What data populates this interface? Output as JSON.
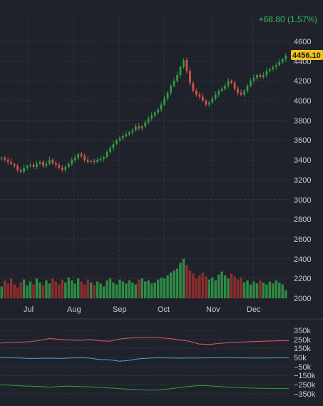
{
  "header": {
    "change_label": "+68.80 (1.57%)"
  },
  "colors": {
    "background": "#1f222a",
    "grid": "#33373f",
    "up": "#2ea043",
    "down": "#d9534f",
    "vol_up": "#2f8a45",
    "vol_down": "#8f2d2d",
    "price_tag": "#f0c419",
    "change": "#2ebd59",
    "ind_red": "#e05a5a",
    "ind_blue": "#4fa3e0",
    "ind_green": "#2ea043"
  },
  "price_axis": {
    "ticks": [
      "4600",
      "4400",
      "4200",
      "4000",
      "3800",
      "3600",
      "3400",
      "3200",
      "3000",
      "2800",
      "2600",
      "2400",
      "2200",
      "2000"
    ],
    "last_price": "4456.10"
  },
  "x_axis": {
    "months": [
      "Jul",
      "Aug",
      "Sep",
      "Oct",
      "Nov",
      "Dec"
    ]
  },
  "indicator_axis": {
    "ticks": [
      "350k",
      "250k",
      "150k",
      "50k",
      "−50k",
      "−150k",
      "−250k",
      "−350k"
    ]
  },
  "chart_data": [
    {
      "type": "candlestick",
      "title": "",
      "ylim": [
        2000,
        4600
      ],
      "months": [
        "Jul",
        "Aug",
        "Sep",
        "Oct",
        "Nov",
        "Dec"
      ],
      "close_series": [
        3420,
        3400,
        3380,
        3360,
        3340,
        3300,
        3280,
        3320,
        3340,
        3350,
        3330,
        3360,
        3380,
        3340,
        3360,
        3400,
        3370,
        3350,
        3320,
        3300,
        3330,
        3360,
        3400,
        3420,
        3460,
        3440,
        3400,
        3380,
        3390,
        3380,
        3400,
        3410,
        3430,
        3480,
        3520,
        3560,
        3600,
        3620,
        3640,
        3660,
        3680,
        3700,
        3740,
        3720,
        3740,
        3780,
        3820,
        3850,
        3880,
        3910,
        3960,
        4020,
        4080,
        4150,
        4200,
        4260,
        4340,
        4410,
        4300,
        4180,
        4100,
        4060,
        4040,
        4000,
        3960,
        3980,
        4020,
        4060,
        4100,
        4120,
        4150,
        4200,
        4180,
        4120,
        4080,
        4060,
        4100,
        4150,
        4200,
        4230,
        4260,
        4240,
        4260,
        4300,
        4320,
        4340,
        4360,
        4390,
        4420,
        4456
      ],
      "last_price": 4456.1,
      "change": "+68.80 (1.57%)"
    },
    {
      "type": "bar",
      "title": "volume",
      "values": [
        2120,
        2180,
        2150,
        2200,
        2140,
        2110,
        2160,
        2190,
        2130,
        2170,
        2140,
        2200,
        2160,
        2130,
        2180,
        2150,
        2200,
        2170,
        2140,
        2190,
        2160,
        2210,
        2180,
        2150,
        2200,
        2170,
        2140,
        2190,
        2160,
        2130,
        2170,
        2150,
        2120,
        2180,
        2200,
        2160,
        2140,
        2190,
        2170,
        2150,
        2180,
        2160,
        2140,
        2190,
        2200,
        2170,
        2180,
        2150,
        2160,
        2190,
        2210,
        2200,
        2230,
        2260,
        2280,
        2300,
        2360,
        2400,
        2340,
        2280,
        2250,
        2200,
        2230,
        2260,
        2220,
        2190,
        2210,
        2180,
        2240,
        2270,
        2230,
        2200,
        2250,
        2220,
        2190,
        2210,
        2160,
        2180,
        2140,
        2170,
        2150,
        2180,
        2160,
        2140,
        2170,
        2150,
        2180,
        2160,
        2140,
        2080
      ]
    },
    {
      "type": "line",
      "title": "indicator",
      "ylim": [
        -350000,
        350000
      ],
      "series": [
        {
          "color": "#e05a5a",
          "values": [
            210000,
            215000,
            220000,
            225000,
            240000,
            260000,
            250000,
            245000,
            240000,
            250000,
            235000,
            230000,
            255000,
            265000,
            270000,
            272000,
            268000,
            260000,
            245000,
            230000,
            200000,
            195000,
            205000,
            215000,
            220000,
            225000,
            228000,
            232000,
            235000,
            236000
          ]
        },
        {
          "color": "#4fa3e0",
          "values": [
            50000,
            48000,
            45000,
            40000,
            42000,
            44000,
            40000,
            46000,
            48000,
            44000,
            30000,
            25000,
            10000,
            20000,
            38000,
            44000,
            48000,
            46000,
            44000,
            45000,
            46000,
            47000,
            48000,
            48000,
            47000,
            46000,
            45000,
            46000,
            47000,
            48000
          ]
        },
        {
          "color": "#2ea043",
          "values": [
            -250000,
            -255000,
            -262000,
            -265000,
            -270000,
            -275000,
            -268000,
            -265000,
            -270000,
            -272000,
            -278000,
            -285000,
            -292000,
            -300000,
            -305000,
            -310000,
            -305000,
            -295000,
            -280000,
            -268000,
            -258000,
            -262000,
            -270000,
            -275000,
            -280000,
            -285000,
            -288000,
            -290000,
            -292000,
            -290000
          ]
        }
      ]
    }
  ]
}
